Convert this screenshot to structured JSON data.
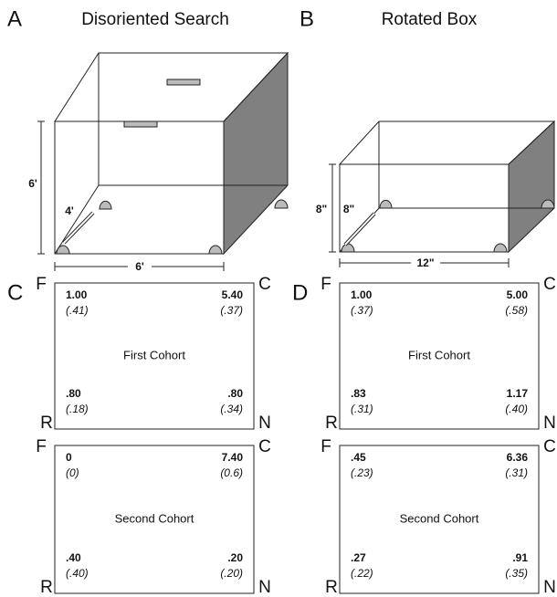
{
  "panels": [
    {
      "letter": "A",
      "title": "Disoriented Search",
      "height": "6'",
      "depth": "4'",
      "width": "6'"
    },
    {
      "letter": "B",
      "title": "Rotated Box",
      "height": "8\"",
      "depth": "8\"",
      "width": "12\""
    }
  ],
  "tables": [
    {
      "letter": "C",
      "corners": [
        "F",
        "C",
        "R",
        "N"
      ],
      "cohorts": [
        {
          "label": "First Cohort",
          "cells": [
            {
              "mean": "1.00",
              "sd": "(.41)"
            },
            {
              "mean": "5.40",
              "sd": "(.37)"
            },
            {
              "mean": ".80",
              "sd": "(.18)"
            },
            {
              "mean": ".80",
              "sd": "(.34)"
            }
          ]
        },
        {
          "label": "Second Cohort",
          "cells": [
            {
              "mean": "0",
              "sd": "(0)"
            },
            {
              "mean": "7.40",
              "sd": "(0.6)"
            },
            {
              "mean": ".40",
              "sd": "(.40)"
            },
            {
              "mean": ".20",
              "sd": "(.20)"
            }
          ]
        }
      ]
    },
    {
      "letter": "D",
      "corners": [
        "F",
        "C",
        "R",
        "N"
      ],
      "cohorts": [
        {
          "label": "First Cohort",
          "cells": [
            {
              "mean": "1.00",
              "sd": "(.37)"
            },
            {
              "mean": "5.00",
              "sd": "(.58)"
            },
            {
              "mean": ".83",
              "sd": "(.31)"
            },
            {
              "mean": "1.17",
              "sd": "(.40)"
            }
          ]
        },
        {
          "label": "Second Cohort",
          "cells": [
            {
              "mean": ".45",
              "sd": "(.23)"
            },
            {
              "mean": "6.36",
              "sd": "(.31)"
            },
            {
              "mean": ".27",
              "sd": "(.22)"
            },
            {
              "mean": ".91",
              "sd": "(.35)"
            }
          ]
        }
      ]
    }
  ]
}
